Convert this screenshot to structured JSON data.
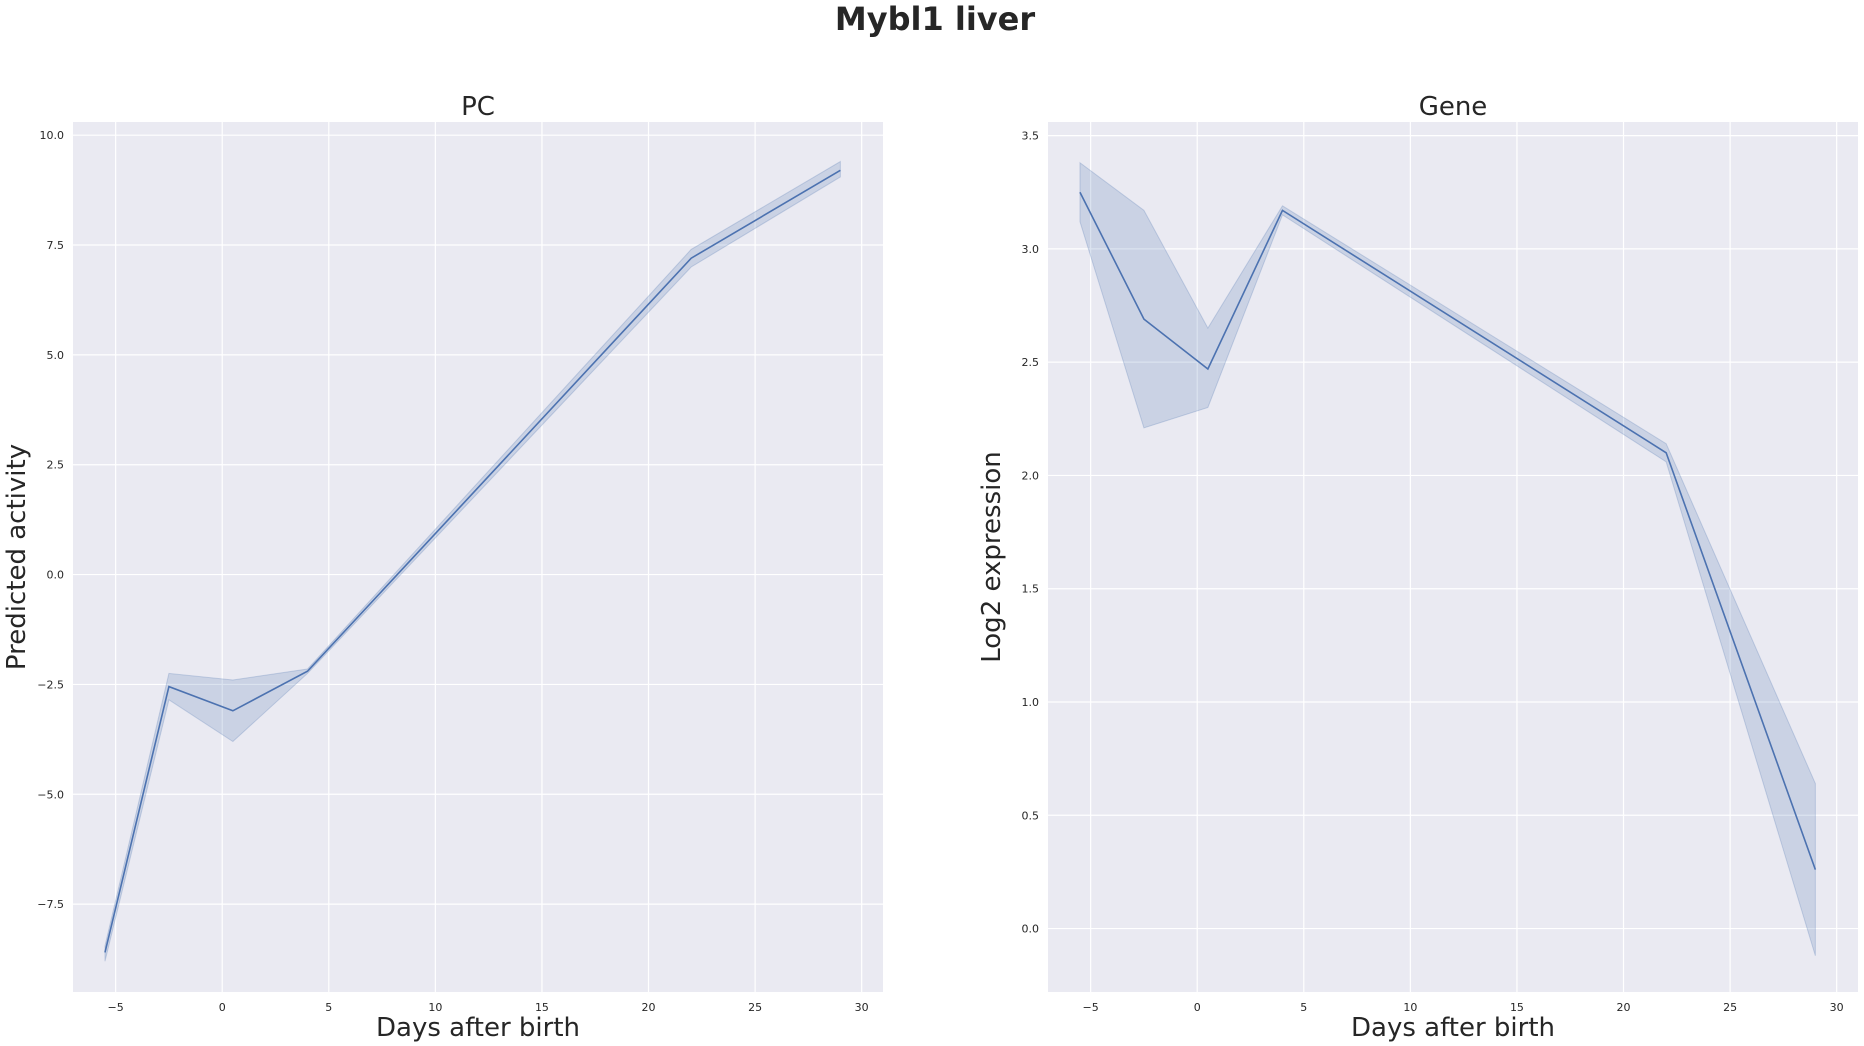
{
  "figure": {
    "title": "Mybl1 liver"
  },
  "chart_data": [
    {
      "type": "line",
      "title": "PC",
      "xlabel": "Days after birth",
      "ylabel": "Predicted activity",
      "xlim": [
        -7,
        31
      ],
      "ylim": [
        -9.5,
        10.3
      ],
      "xticks": [
        -5,
        0,
        5,
        10,
        15,
        20,
        25,
        30
      ],
      "xtick_labels": [
        "−5",
        "0",
        "5",
        "10",
        "15",
        "20",
        "25",
        "30"
      ],
      "yticks": [
        -7.5,
        -5,
        -2.5,
        0,
        2.5,
        5,
        7.5,
        10
      ],
      "ytick_labels": [
        "−7.5",
        "−5.0",
        "−2.5",
        "0.0",
        "2.5",
        "5.0",
        "7.5",
        "10.0"
      ],
      "grid": true,
      "line_color": "#4c72b0",
      "band_color": "#4c72b0",
      "series": [
        {
          "x": [
            -5.5,
            -2.5,
            0.5,
            4,
            22,
            29
          ],
          "y": [
            -8.6,
            -2.55,
            -3.1,
            -2.2,
            7.2,
            9.2
          ],
          "ci_low": [
            -8.8,
            -2.85,
            -3.8,
            -2.25,
            7.0,
            9.05
          ],
          "ci_high": [
            -8.45,
            -2.25,
            -2.4,
            -2.15,
            7.4,
            9.4
          ]
        }
      ]
    },
    {
      "type": "line",
      "title": "Gene",
      "xlabel": "Days after birth",
      "ylabel": "Log2 expression",
      "xlim": [
        -7,
        31
      ],
      "ylim": [
        -0.28,
        3.56
      ],
      "xticks": [
        -5,
        0,
        5,
        10,
        15,
        20,
        25,
        30
      ],
      "xtick_labels": [
        "−5",
        "0",
        "5",
        "10",
        "15",
        "20",
        "25",
        "30"
      ],
      "yticks": [
        0,
        0.5,
        1,
        1.5,
        2,
        2.5,
        3,
        3.5
      ],
      "ytick_labels": [
        "0.0",
        "0.5",
        "1.0",
        "1.5",
        "2.0",
        "2.5",
        "3.0",
        "3.5"
      ],
      "grid": true,
      "line_color": "#4c72b0",
      "band_color": "#4c72b0",
      "series": [
        {
          "x": [
            -5.5,
            -2.5,
            0.5,
            4,
            22,
            29
          ],
          "y": [
            3.25,
            2.69,
            2.47,
            3.17,
            2.1,
            0.26
          ],
          "ci_low": [
            3.12,
            2.21,
            2.3,
            3.15,
            2.06,
            -0.12
          ],
          "ci_high": [
            3.38,
            3.17,
            2.65,
            3.19,
            2.14,
            0.64
          ]
        }
      ]
    }
  ]
}
